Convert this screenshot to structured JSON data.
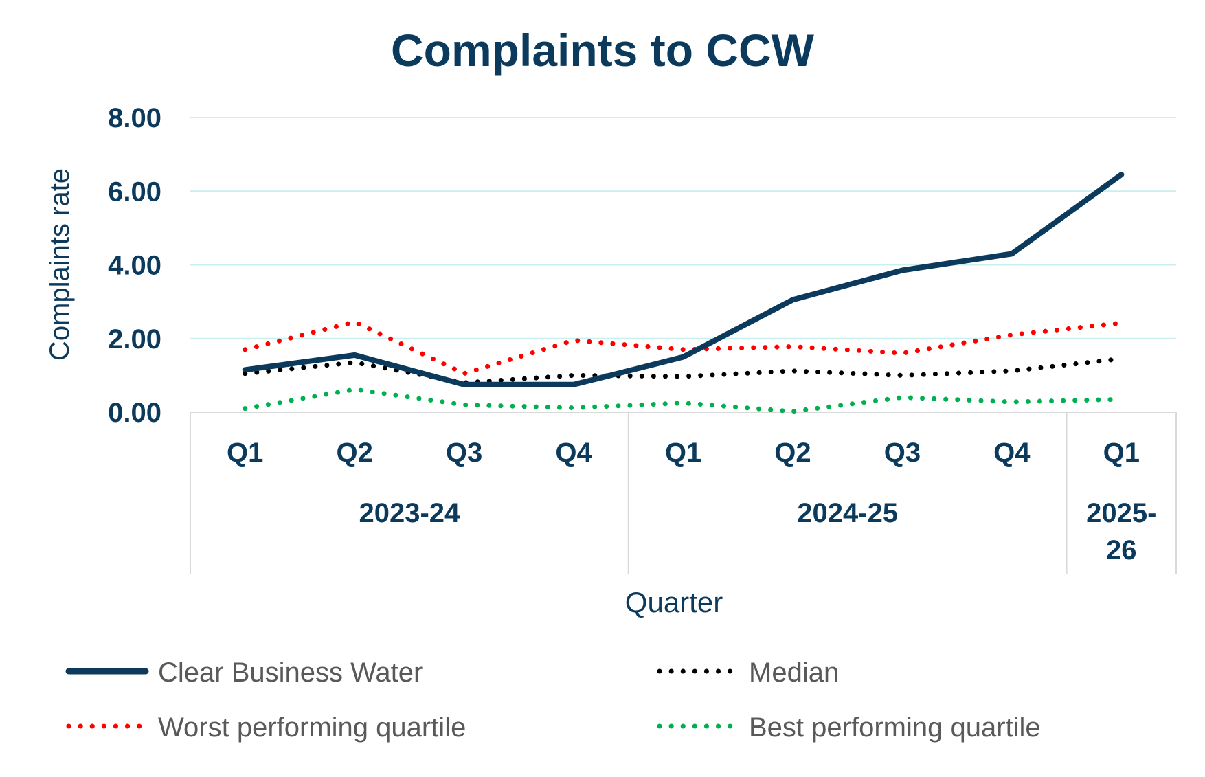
{
  "chart_data": {
    "type": "line",
    "title": "Complaints to CCW",
    "xlabel": "Quarter",
    "ylabel": "Complaints rate",
    "categories": [
      "Q1",
      "Q2",
      "Q3",
      "Q4",
      "Q1",
      "Q2",
      "Q3",
      "Q4",
      "Q1"
    ],
    "groups": [
      {
        "label": "2023-24",
        "span": 4
      },
      {
        "label": "2024-25",
        "span": 4
      },
      {
        "label": "2025-26",
        "span": 1,
        "lines": [
          "2025-",
          "26"
        ]
      }
    ],
    "ylim": [
      0,
      8
    ],
    "yticks": [
      "0.00",
      "2.00",
      "4.00",
      "6.00",
      "8.00"
    ],
    "grid": true,
    "legend_position": "bottom",
    "series": [
      {
        "name": "Clear Business Water",
        "color": "#0b3a5c",
        "style": "solid",
        "values": [
          1.15,
          1.55,
          0.75,
          0.75,
          1.5,
          3.05,
          3.85,
          4.3,
          6.45
        ]
      },
      {
        "name": "Median",
        "color": "#000000",
        "style": "dotted",
        "values": [
          1.05,
          1.35,
          0.8,
          1.0,
          0.97,
          1.12,
          1.0,
          1.12,
          1.45
        ]
      },
      {
        "name": "Worst performing quartile",
        "color": "#ff0000",
        "style": "dotted",
        "values": [
          1.7,
          2.45,
          1.05,
          1.95,
          1.7,
          1.78,
          1.6,
          2.1,
          2.42
        ]
      },
      {
        "name": "Best performing quartile",
        "color": "#00b050",
        "style": "dotted",
        "values": [
          0.1,
          0.62,
          0.2,
          0.12,
          0.25,
          0.02,
          0.4,
          0.28,
          0.35
        ]
      }
    ]
  }
}
